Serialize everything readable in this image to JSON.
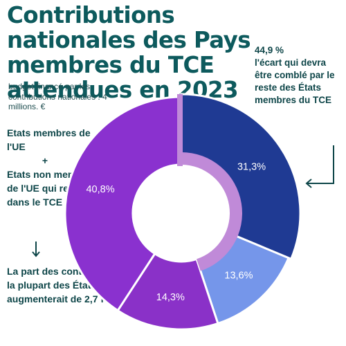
{
  "title": "Contributions nationales des Pays membres du TCE attendues en 2023",
  "subtitle": "budget financé par les contributions nationales : 4 millions. €",
  "note": {
    "pct": "44,9 %",
    "text": "l'écart qui devra être comblé par le reste des États membres du TCE"
  },
  "side": {
    "line1": "Etats membres de l'UE",
    "plus": "+",
    "line2": "Etats non membres de l'UE qui restent dans le TCE"
  },
  "bottom": "La part des contributions de la plupart des États restants augmenterait de 2,7 fois",
  "colors": {
    "title": "#0d5a5d",
    "text": "#0d4548"
  },
  "chart_data": {
    "type": "pie",
    "title": "Contributions nationales des Pays membres du TCE attendues en 2023",
    "slices": [
      {
        "label": "31,3%",
        "value": 31.3,
        "color": "#1f3a93"
      },
      {
        "label": "13,6%",
        "value": 13.6,
        "color": "#7596ea"
      },
      {
        "label": "14,3%",
        "value": 14.3,
        "color": "#8a31c8"
      },
      {
        "label": "40,8%",
        "value": 40.8,
        "color": "#8a31cf"
      }
    ],
    "inner_segment_value": 44.9,
    "inner_segment_color": "#c08ad8"
  }
}
